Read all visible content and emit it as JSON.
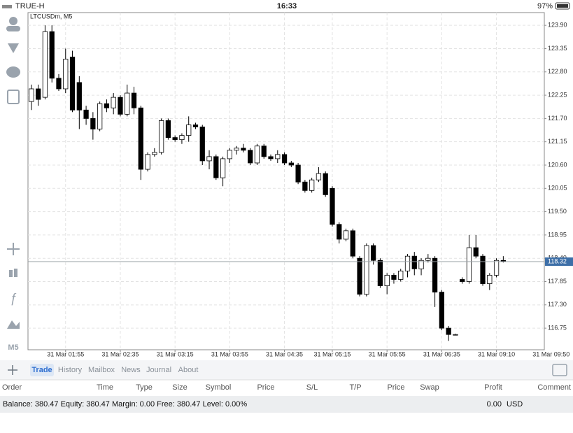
{
  "status_bar": {
    "carrier": "TRUE-H",
    "time": "16:33",
    "battery": "97%"
  },
  "sidebar": {
    "timeframe": "M5"
  },
  "chart_data": {
    "type": "candlestick",
    "title": "LTCUSDm, M5",
    "open": [
      122.1,
      122.4,
      122.2,
      123.75,
      122.65,
      122.4,
      123.15,
      122.55,
      121.9,
      121.7,
      121.45,
      122.05,
      121.95,
      122.2,
      121.8,
      122.3,
      121.95,
      120.5,
      120.85,
      120.9,
      121.65,
      121.25,
      121.2,
      121.3,
      121.55,
      121.5,
      120.7,
      120.8,
      120.3,
      120.75,
      120.95,
      121.0,
      120.95,
      120.65,
      121.05,
      120.8,
      120.75,
      120.85,
      120.65,
      120.6,
      120.2,
      120.0,
      120.25,
      120.4,
      120.05,
      119.2,
      118.85,
      119.05,
      118.4,
      117.55,
      118.7,
      118.35,
      117.75,
      118.0,
      117.9,
      118.1,
      118.45,
      118.15,
      118.35,
      118.4,
      117.6,
      116.75,
      116.6,
      117.9,
      117.85,
      118.65,
      118.45,
      117.8,
      118.0,
      118.35
    ],
    "high": [
      122.5,
      122.5,
      123.9,
      123.9,
      122.75,
      123.35,
      123.3,
      122.7,
      122.0,
      121.85,
      122.1,
      122.15,
      122.3,
      122.25,
      122.5,
      122.45,
      122.0,
      120.9,
      121.0,
      121.7,
      121.7,
      121.3,
      121.35,
      121.75,
      121.6,
      121.55,
      120.95,
      120.85,
      120.8,
      121.0,
      121.05,
      121.1,
      121.0,
      121.1,
      121.1,
      120.85,
      120.95,
      120.9,
      120.7,
      120.65,
      120.25,
      120.3,
      120.55,
      120.45,
      120.1,
      119.25,
      119.1,
      119.1,
      118.45,
      118.75,
      118.75,
      118.4,
      118.05,
      118.05,
      118.15,
      118.5,
      118.55,
      118.4,
      118.5,
      118.45,
      117.65,
      116.8,
      116.62,
      117.95,
      118.95,
      118.95,
      118.5,
      118.05,
      118.4,
      118.45
    ],
    "low": [
      121.9,
      122.0,
      122.15,
      122.55,
      122.35,
      122.3,
      121.85,
      121.45,
      121.55,
      121.2,
      121.4,
      121.85,
      121.8,
      121.75,
      121.75,
      121.8,
      120.25,
      120.45,
      120.8,
      120.85,
      121.2,
      121.15,
      121.1,
      121.15,
      121.45,
      120.6,
      120.5,
      120.25,
      120.1,
      120.65,
      120.85,
      120.9,
      120.6,
      120.6,
      120.75,
      120.7,
      120.65,
      120.6,
      120.55,
      120.15,
      119.95,
      119.95,
      120.2,
      119.85,
      119.15,
      118.75,
      118.8,
      118.4,
      117.5,
      117.5,
      118.25,
      117.7,
      117.55,
      117.8,
      117.85,
      117.95,
      118.0,
      118.0,
      118.3,
      117.25,
      116.7,
      116.45,
      116.58,
      117.8,
      117.8,
      118.4,
      117.75,
      117.65,
      117.95,
      118.3
    ],
    "close": [
      122.4,
      122.15,
      123.75,
      122.65,
      122.4,
      123.1,
      121.9,
      121.9,
      121.7,
      121.45,
      122.05,
      121.95,
      122.2,
      121.8,
      122.3,
      121.95,
      120.5,
      120.85,
      120.9,
      121.65,
      121.25,
      121.2,
      121.3,
      121.55,
      121.5,
      120.7,
      120.8,
      120.3,
      120.75,
      120.95,
      121.0,
      120.95,
      120.65,
      121.05,
      120.8,
      120.75,
      120.85,
      120.65,
      120.6,
      120.2,
      120.0,
      120.25,
      120.4,
      119.9,
      119.2,
      118.85,
      119.05,
      118.45,
      117.55,
      118.7,
      118.35,
      117.75,
      118.0,
      117.9,
      118.1,
      118.45,
      118.15,
      118.35,
      118.4,
      117.6,
      116.75,
      116.6,
      116.6,
      117.85,
      118.65,
      118.45,
      117.8,
      118.0,
      118.35,
      118.32
    ],
    "up_color": "#ffffff",
    "down_color": "#000000",
    "current_price": 118.32,
    "current_price_color": "#3d6fa8",
    "ylim": [
      116.24,
      124.2
    ],
    "yticks": [
      {
        "value": 123.9,
        "label": "123.90"
      },
      123.35,
      {
        "value": 122.8,
        "label": "122.80"
      },
      122.25,
      {
        "value": 121.7,
        "label": "121.70"
      },
      121.15,
      {
        "value": 120.6,
        "label": "120.60"
      },
      120.05,
      {
        "value": 119.5,
        "label": "119.50"
      },
      118.95,
      {
        "value": 118.4,
        "label": "118.40"
      },
      117.85,
      {
        "value": 117.3,
        "label": "117.30"
      },
      116.75
    ],
    "xlim": [
      -0.5,
      75
    ],
    "xticks": [
      {
        "value": 5,
        "label": "31 Mar 01:55"
      },
      {
        "value": 13,
        "label": "31 Mar 02:35"
      },
      {
        "value": 21,
        "label": "31 Mar 03:15"
      },
      {
        "value": 29,
        "label": "31 Mar 03:55"
      },
      {
        "value": 37,
        "label": "31 Mar 04:35"
      },
      {
        "value": 44,
        "label": "31 Mar 05:15"
      },
      {
        "value": 52,
        "label": "31 Mar 05:55"
      },
      {
        "value": 60,
        "label": "31 Mar 06:35"
      },
      {
        "value": 68,
        "label": "31 Mar 09:10"
      },
      {
        "value": 76,
        "label": "31 Mar 09:50"
      }
    ],
    "grid": true
  },
  "tabs": [
    {
      "label": "Trade",
      "active": true
    },
    {
      "label": "History",
      "active": false
    },
    {
      "label": "Mailbox",
      "active": false
    },
    {
      "label": "News",
      "active": false
    },
    {
      "label": "Journal",
      "active": false
    },
    {
      "label": "About",
      "active": false
    }
  ],
  "columns": [
    "Order",
    "Time",
    "Type",
    "Size",
    "Symbol",
    "Price",
    "S/L",
    "T/P",
    "Price",
    "Swap",
    "Profit",
    "Comment"
  ],
  "footer": {
    "account": "Balance: 380.47 Equity: 380.47 Margin: 0.00 Free: 380.47 Level: 0.00%",
    "profit": "0.00",
    "currency": "USD"
  }
}
